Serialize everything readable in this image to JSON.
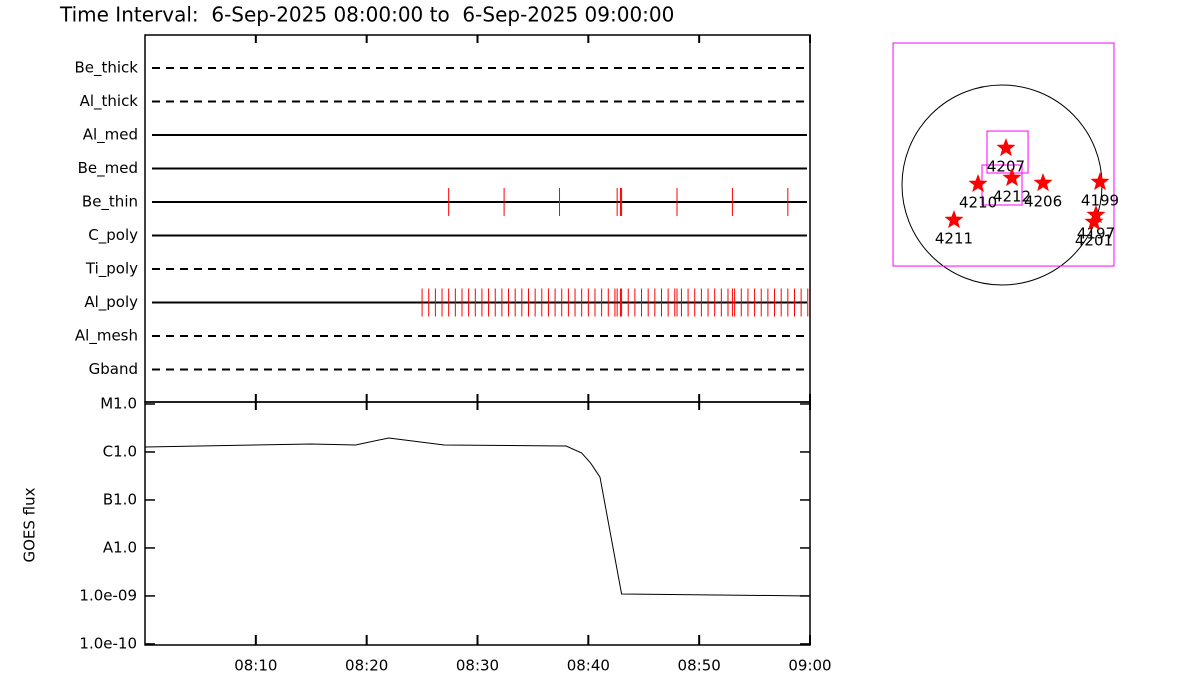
{
  "chart_data": [
    {
      "type": "event-timeline",
      "title": "Time Interval:  6-Sep-2025 08:00:00 to  6-Sep-2025 09:00:00",
      "categories": [
        "Be_thick",
        "Al_thick",
        "Al_med",
        "Be_med",
        "Be_thin",
        "C_poly",
        "Ti_poly",
        "Al_poly",
        "Al_mesh",
        "Gband"
      ],
      "line_styles": [
        "dashed",
        "dashed",
        "solid",
        "solid",
        "solid",
        "solid",
        "dashed",
        "solid",
        "dashed",
        "dashed"
      ],
      "events": [
        [],
        [],
        [],
        [],
        [
          27.4,
          32.4,
          37.4,
          42.6,
          42.9,
          43.0,
          48.0,
          53.0,
          58.0
        ],
        [],
        [],
        [
          25.0,
          25.6,
          26.2,
          26.8,
          27.4,
          28.0,
          28.6,
          29.2,
          29.8,
          30.4,
          31.0,
          31.6,
          32.2,
          32.8,
          33.4,
          34.0,
          34.6,
          35.2,
          35.8,
          36.4,
          37.0,
          37.6,
          38.2,
          38.8,
          39.4,
          40.0,
          40.6,
          41.2,
          41.8,
          42.4,
          42.6,
          42.9,
          43.0,
          43.6,
          44.2,
          44.8,
          45.4,
          46.0,
          46.6,
          47.2,
          47.8,
          48.0,
          48.4,
          49.0,
          49.6,
          50.2,
          50.8,
          51.4,
          52.0,
          52.6,
          53.0,
          53.2,
          53.8,
          54.4,
          55.0,
          55.6,
          56.2,
          56.8,
          57.4,
          58.0,
          58.6,
          59.2,
          59.8
        ],
        [],
        []
      ],
      "color": "#ff0000",
      "xlim": [
        0,
        60
      ]
    },
    {
      "type": "line",
      "y_label": "GOES flux",
      "x": [
        0,
        15.0,
        19.0,
        22.0,
        27.0,
        38.0,
        39.4,
        40.2,
        41.05,
        43.0,
        60
      ],
      "values": [
        1.27e-06,
        1.47e-06,
        1.4e-06,
        1.96e-06,
        1.4e-06,
        1.33e-06,
        9.5e-07,
        5.9e-07,
        3e-07,
        1.1e-09,
        1e-09
      ],
      "color": "#000000",
      "log_y": true,
      "xlim": [
        0,
        60
      ],
      "xticks": [
        {
          "value": 10,
          "label": "08:10"
        },
        {
          "value": 20,
          "label": "08:20"
        },
        {
          "value": 30,
          "label": "08:30"
        },
        {
          "value": 40,
          "label": "08:40"
        },
        {
          "value": 50,
          "label": "08:50"
        },
        {
          "value": 60,
          "label": "09:00"
        }
      ],
      "ylim": [
        9.5e-11,
        1.1e-05
      ],
      "yticks": [
        {
          "value": 1e-10,
          "label": "1.0e-10"
        },
        {
          "value": 1e-09,
          "label": "1.0e-09"
        },
        {
          "value": 1e-08,
          "label": "A1.0"
        },
        {
          "value": 1e-07,
          "label": "B1.0"
        },
        {
          "value": 1e-06,
          "label": "C1.0"
        },
        {
          "value": 1e-05,
          "label": "M1.0"
        }
      ]
    },
    {
      "type": "disk-map",
      "labels": [
        "4207",
        "4212",
        "4210",
        "4206",
        "4199",
        "4211",
        "4197",
        "4201"
      ],
      "x": [
        38,
        96,
        -230,
        394,
        941,
        -461,
        902,
        883
      ],
      "values": [
        355,
        67,
        10,
        19,
        29,
        -336,
        -288,
        -355
      ],
      "color": "#ff0000",
      "fov_color": "#ff00ff",
      "fov": [
        [
          -1046,
          1075,
          -778,
          1363
        ],
        [
          -144,
          250,
          115,
          518
        ],
        [
          -192,
          192,
          -192,
          192
        ]
      ]
    }
  ]
}
